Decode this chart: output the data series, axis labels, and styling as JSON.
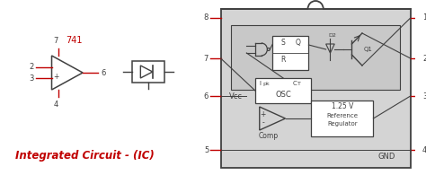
{
  "bg_color": "#ffffff",
  "red_color": "#c00000",
  "dark_color": "#404040",
  "gray_color": "#d4d4d4",
  "title": "Integrated Circuit - (IC)",
  "title_fontsize": 8.5,
  "ic_label": "741",
  "opamp_pin_labels": [
    "7",
    "2",
    "3",
    "4",
    "6"
  ],
  "left_pins": [
    "8",
    "7",
    "6",
    "5"
  ],
  "right_pins": [
    "1",
    "2",
    "3",
    "4"
  ]
}
